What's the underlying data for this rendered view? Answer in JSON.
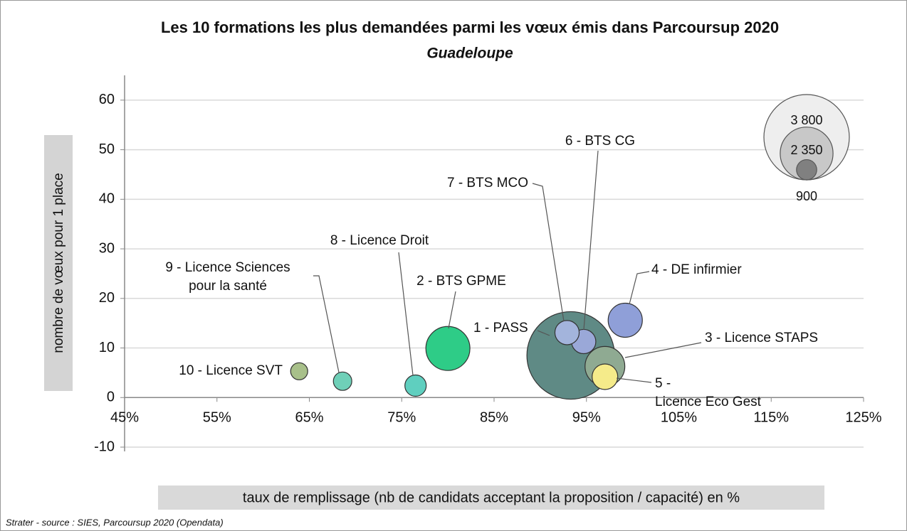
{
  "chart_data": {
    "type": "bubble",
    "title": "Les 10 formations les plus demandées parmi les vœux émis dans Parcoursup 2020",
    "subtitle": "Guadeloupe",
    "x_label": "taux de remplissage (nb de candidats acceptant la proposition / capacité) en %",
    "y_label": "nombre de vœux pour 1 place",
    "source": "Strater - source : SIES, Parcoursup 2020 (Opendata)",
    "xlim": [
      45,
      125
    ],
    "xticks": [
      {
        "value": 45,
        "label": "45%"
      },
      {
        "value": 55,
        "label": "55%"
      },
      {
        "value": 65,
        "label": "65%"
      },
      {
        "value": 75,
        "label": "75%"
      },
      {
        "value": 85,
        "label": "85%"
      },
      {
        "value": 95,
        "label": "95%"
      },
      {
        "value": 105,
        "label": "105%"
      },
      {
        "value": 115,
        "label": "115%"
      },
      {
        "value": 125,
        "label": "125%"
      }
    ],
    "ylim": [
      -10,
      65
    ],
    "yticks": [
      -10,
      0,
      10,
      20,
      30,
      40,
      50,
      60
    ],
    "grid": true,
    "points": [
      {
        "name": "1 - PASS",
        "x": 93.3,
        "y": 8.5,
        "size": 3900,
        "color": "#5f8a85"
      },
      {
        "name": "2 - BTS GPME",
        "x": 80.0,
        "y": 9.9,
        "size": 1960,
        "color": "#2ecc87"
      },
      {
        "name": "3 - Licence STAPS",
        "x": 97.0,
        "y": 6.3,
        "size": 1770,
        "color": "#8faa92"
      },
      {
        "name": "4 - DE infirmier",
        "x": 99.2,
        "y": 15.6,
        "size": 1520,
        "color": "#8f9fd8"
      },
      {
        "name": "5 - Licence Eco Gest",
        "x": 97.0,
        "y": 4.2,
        "size": 1140,
        "color": "#f5eb8a"
      },
      {
        "name": "6 - BTS CG",
        "x": 94.7,
        "y": 11.3,
        "size": 1080,
        "color": "#9aa8d8"
      },
      {
        "name": "7 - BTS MCO",
        "x": 92.9,
        "y": 13.1,
        "size": 1080,
        "color": "#a3b4dc"
      },
      {
        "name": "8 - Licence Droit",
        "x": 76.5,
        "y": 2.4,
        "size": 950,
        "color": "#5fcfbf"
      },
      {
        "name": "9 - Licence Sciences pour la santé",
        "x": 68.6,
        "y": 3.3,
        "size": 820,
        "color": "#6fd0b8"
      },
      {
        "name": "10 - Licence SVT",
        "x": 63.9,
        "y": 5.3,
        "size": 760,
        "color": "#a8c08a"
      }
    ],
    "size_legend": {
      "values": [
        3800,
        2350,
        900
      ],
      "value_labels": [
        "3 800",
        "2 350",
        "900"
      ]
    }
  }
}
